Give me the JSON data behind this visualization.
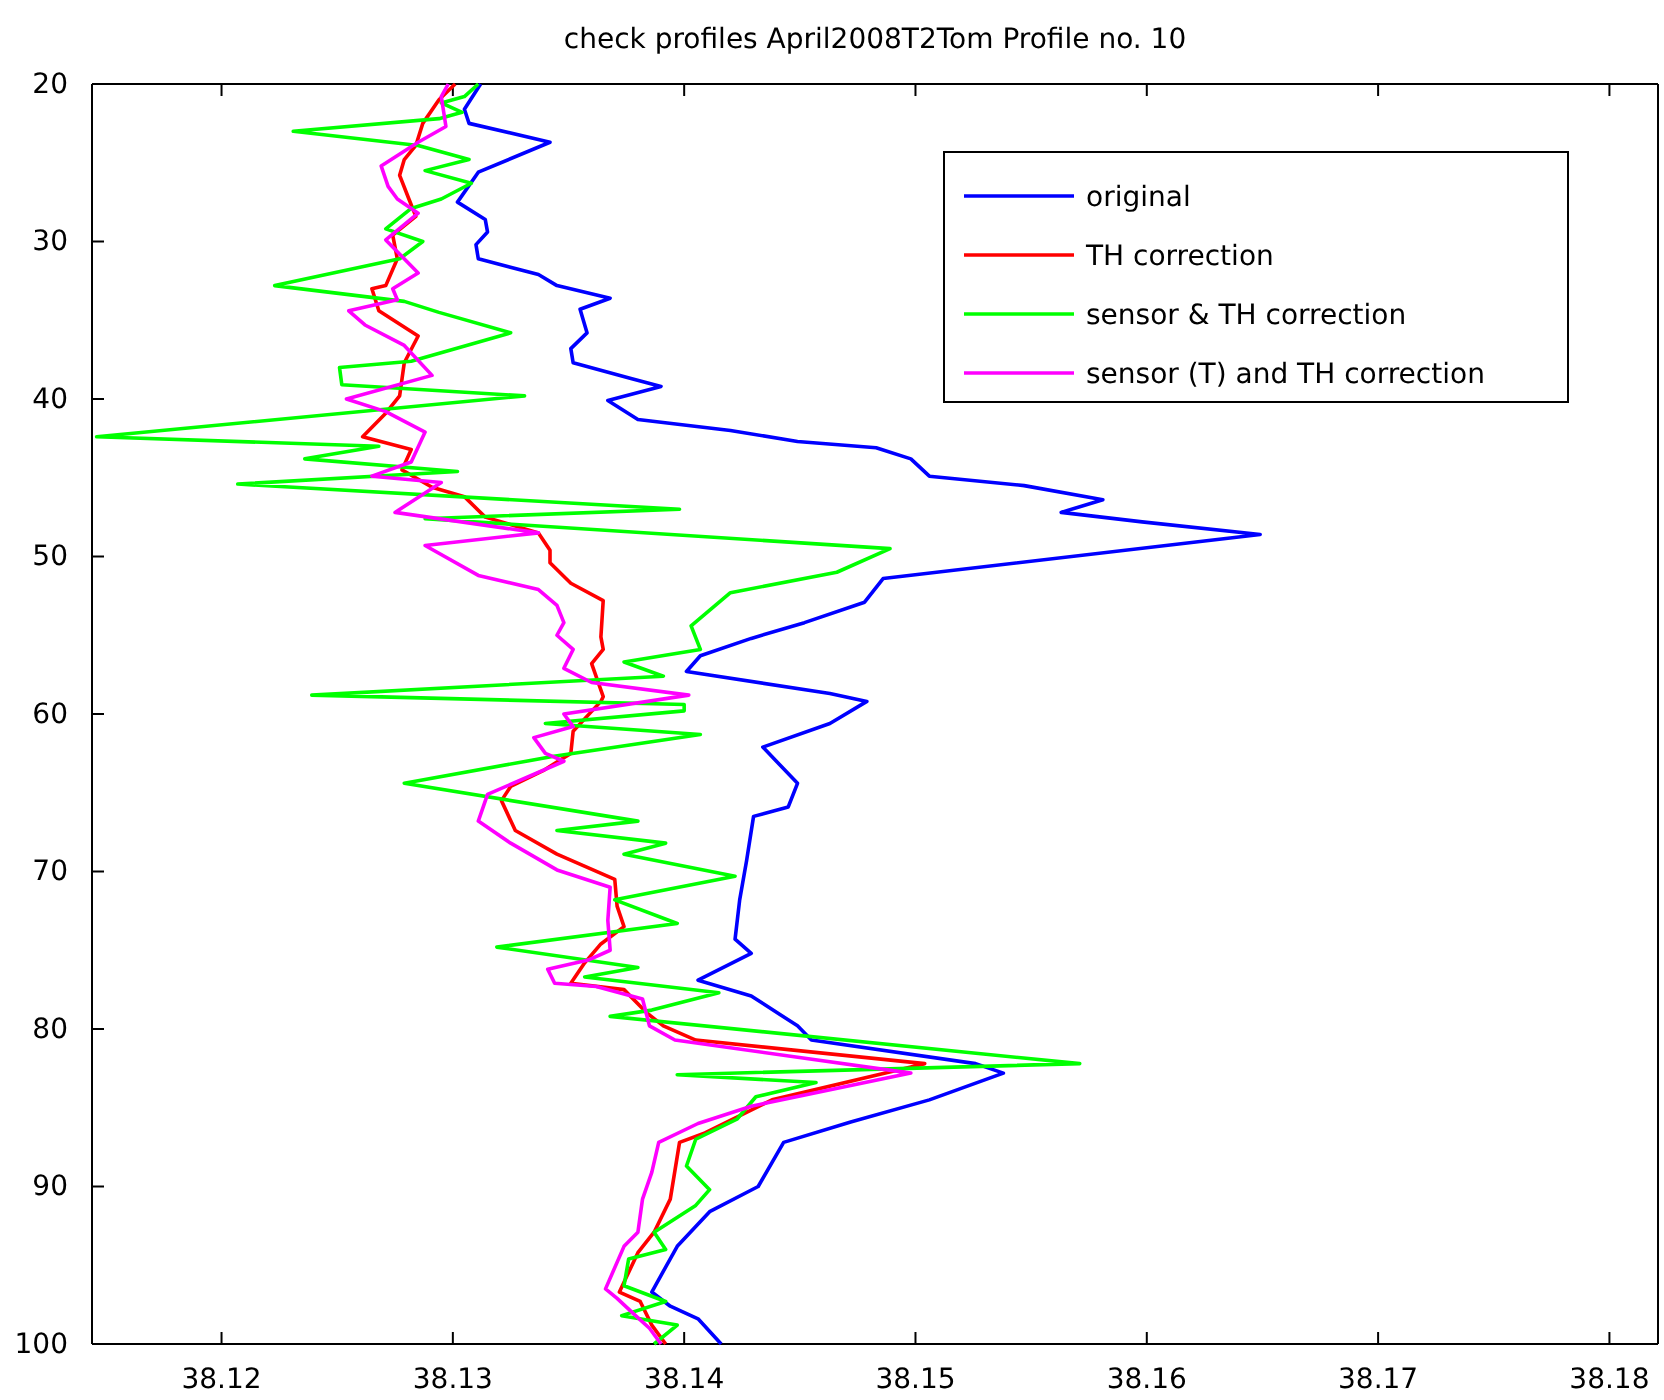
{
  "chart_data": {
    "type": "line",
    "title": "check profiles April2008T2Tom Profile no. 10",
    "xlim": [
      38.1144,
      38.1821
    ],
    "xticks": [
      38.12,
      38.13,
      38.14,
      38.15,
      38.16,
      38.17,
      38.18
    ],
    "ylim": [
      100,
      20
    ],
    "yticks": [
      20,
      30,
      40,
      50,
      60,
      70,
      80,
      90,
      100
    ],
    "grid": false,
    "legend": "top right",
    "series": [
      {
        "name": "original",
        "color": "#0000ff",
        "x": [
          38.1312,
          38.1305,
          38.1307,
          38.1342,
          38.1311,
          38.1302,
          38.1314,
          38.1315,
          38.131,
          38.1311,
          38.1337,
          38.1345,
          38.1368,
          38.1355,
          38.1358,
          38.1351,
          38.1352,
          38.1377,
          38.139,
          38.1367,
          38.138,
          38.142,
          38.1449,
          38.1483,
          38.1498,
          38.1506,
          38.1547,
          38.1581,
          38.1563,
          38.1598,
          38.1649,
          38.1486,
          38.1478,
          38.1452,
          38.1429,
          38.1407,
          38.1401,
          38.1463,
          38.1479,
          38.1463,
          38.1434,
          38.1449,
          38.1445,
          38.143,
          38.1427,
          38.1424,
          38.1422,
          38.1429,
          38.1406,
          38.1429,
          38.1449,
          38.1455,
          38.1526,
          38.1538,
          38.1506,
          38.1472,
          38.1443,
          38.1432,
          38.1411,
          38.1397,
          38.1386,
          38.1394,
          38.1406,
          38.1416
        ],
        "values": [
          20,
          21.6,
          22.5,
          23.7,
          25.6,
          27.5,
          28.6,
          29.4,
          30.2,
          31.1,
          32.1,
          32.8,
          33.6,
          34.3,
          35.8,
          36.8,
          37.7,
          38.7,
          39.2,
          40.1,
          41.3,
          42,
          42.7,
          43.1,
          43.8,
          44.9,
          45.5,
          46.4,
          47.2,
          47.8,
          48.6,
          51.4,
          52.9,
          54.2,
          55.2,
          56.3,
          57.3,
          58.7,
          59.2,
          60.6,
          62.1,
          64.4,
          65.9,
          66.5,
          69.3,
          71.8,
          74.3,
          75.2,
          76.9,
          77.9,
          79.8,
          80.7,
          82.2,
          82.8,
          84.5,
          85.9,
          87.2,
          90,
          91.6,
          93.8,
          96.7,
          97.6,
          98.4,
          100
        ]
      },
      {
        "name": "TH correction",
        "color": "#ff0000",
        "x": [
          38.1301,
          38.1294,
          38.1287,
          38.1284,
          38.1279,
          38.1277,
          38.1281,
          38.1284,
          38.1274,
          38.1276,
          38.1271,
          38.1265,
          38.1268,
          38.1285,
          38.1279,
          38.1277,
          38.1271,
          38.1261,
          38.1282,
          38.1278,
          38.1291,
          38.1305,
          38.1314,
          38.1337,
          38.1342,
          38.1342,
          38.1351,
          38.1365,
          38.1364,
          38.1365,
          38.136,
          38.1365,
          38.1364,
          38.1352,
          38.1351,
          38.1339,
          38.1325,
          38.1321,
          38.1327,
          38.1345,
          38.137,
          38.1371,
          38.1374,
          38.1364,
          38.1357,
          38.1351,
          38.1374,
          38.1384,
          38.1391,
          38.1405,
          38.1504,
          38.1487,
          38.1438,
          38.1409,
          38.1398,
          38.1394,
          38.1387,
          38.138,
          38.1372,
          38.1381,
          38.1386,
          38.1392
        ],
        "values": [
          20,
          21,
          22.5,
          23.9,
          24.8,
          25.8,
          27.3,
          28.4,
          29.6,
          31.1,
          32.8,
          33,
          34.4,
          36,
          37.7,
          39.8,
          40.9,
          42.4,
          43.2,
          44.5,
          45.6,
          46.2,
          47.5,
          48.5,
          49.6,
          50.4,
          51.7,
          52.8,
          55.1,
          55.9,
          56.8,
          58.9,
          59.2,
          61.1,
          62.5,
          63.6,
          64.6,
          65.5,
          67.4,
          68.9,
          70.5,
          72.2,
          73.5,
          74.6,
          75.8,
          77.1,
          77.5,
          79,
          79.8,
          80.7,
          82.2,
          82.8,
          84.5,
          86.6,
          87.2,
          90.8,
          92.9,
          94.2,
          96.7,
          97.3,
          98.8,
          100
        ]
      },
      {
        "name": "sensor & TH correction",
        "color": "#00ff00",
        "x": [
          38.1311,
          38.1305,
          38.1295,
          38.1304,
          38.1294,
          38.1231,
          38.1285,
          38.1307,
          38.1288,
          38.1308,
          38.1295,
          38.1282,
          38.1271,
          38.1287,
          38.1277,
          38.1223,
          38.1279,
          38.1294,
          38.1325,
          38.1282,
          38.1251,
          38.1252,
          38.1331,
          38.1146,
          38.1268,
          38.1236,
          38.1302,
          38.1207,
          38.1398,
          38.1288,
          38.1489,
          38.1466,
          38.142,
          38.1403,
          38.1407,
          38.1374,
          38.1391,
          38.1239,
          38.14,
          38.14,
          38.134,
          38.1407,
          38.1343,
          38.1279,
          38.138,
          38.1345,
          38.1392,
          38.1374,
          38.1422,
          38.137,
          38.1397,
          38.1319,
          38.138,
          38.1357,
          38.1415,
          38.1386,
          38.1368,
          38.1571,
          38.1397,
          38.1457,
          38.1431,
          38.1423,
          38.1405,
          38.1401,
          38.1411,
          38.1405,
          38.1387,
          38.1392,
          38.1376,
          38.1374,
          38.1392,
          38.1373,
          38.1397,
          38.1387
        ],
        "values": [
          20,
          20.8,
          21.2,
          21.8,
          22.2,
          23,
          23.9,
          24.8,
          25.5,
          26.3,
          27.3,
          27.9,
          29.2,
          30,
          31.1,
          32.8,
          33.8,
          34.5,
          35.8,
          37.6,
          38,
          39.1,
          39.8,
          42.4,
          43,
          43.8,
          44.6,
          45.4,
          47,
          47.6,
          49.5,
          51,
          52.3,
          54.4,
          55.9,
          56.7,
          57.6,
          58.8,
          59.4,
          59.8,
          60.6,
          61.3,
          62.7,
          64.4,
          66.8,
          67.4,
          68.2,
          68.9,
          70.3,
          71.8,
          73.3,
          74.8,
          76.1,
          76.7,
          77.7,
          78.8,
          79.2,
          82.2,
          82.9,
          83.4,
          84.3,
          85.7,
          87,
          88.7,
          90.2,
          91.2,
          92.9,
          94,
          94.6,
          96.3,
          97.3,
          98.2,
          98.8,
          100
        ]
      },
      {
        "name": "sensor (T) and TH correction",
        "color": "#ff00ff",
        "x": [
          38.1298,
          38.1295,
          38.1297,
          38.1285,
          38.1269,
          38.1272,
          38.1276,
          38.1285,
          38.1271,
          38.1285,
          38.1274,
          38.1276,
          38.1255,
          38.1262,
          38.1279,
          38.1291,
          38.1254,
          38.1271,
          38.1288,
          38.1282,
          38.1265,
          38.1295,
          38.1275,
          38.1337,
          38.1288,
          38.1311,
          38.1337,
          38.1345,
          38.1348,
          38.1345,
          38.1352,
          38.1348,
          38.136,
          38.1402,
          38.1348,
          38.1352,
          38.1335,
          38.134,
          38.1348,
          38.1315,
          38.1311,
          38.1325,
          38.1345,
          38.1368,
          38.1367,
          38.1368,
          38.1359,
          38.1341,
          38.1344,
          38.1362,
          38.1382,
          38.1385,
          38.1396,
          38.1498,
          38.1429,
          38.1406,
          38.1389,
          38.1386,
          38.1382,
          38.138,
          38.1374,
          38.1366,
          38.1371,
          38.1379,
          38.1385,
          38.139
        ],
        "values": [
          20,
          20.8,
          22.7,
          23.7,
          25.2,
          26.5,
          27.3,
          28.2,
          29.9,
          32,
          33,
          33.7,
          34.4,
          35.3,
          36.6,
          38.5,
          40,
          40.8,
          42.1,
          44,
          44.9,
          45.3,
          47.2,
          48.5,
          49.3,
          51.2,
          52.1,
          53.1,
          54.2,
          55,
          55.9,
          57.1,
          58,
          58.8,
          60,
          60.8,
          61.5,
          62.5,
          63,
          65.1,
          66.8,
          68.2,
          69.9,
          71,
          73.1,
          75,
          75.6,
          76.2,
          77.1,
          77.3,
          78.1,
          79.8,
          80.7,
          82.8,
          84.9,
          86,
          87.2,
          89.1,
          90.8,
          92.9,
          93.8,
          96.5,
          97.1,
          98.2,
          99,
          100
        ]
      }
    ]
  }
}
